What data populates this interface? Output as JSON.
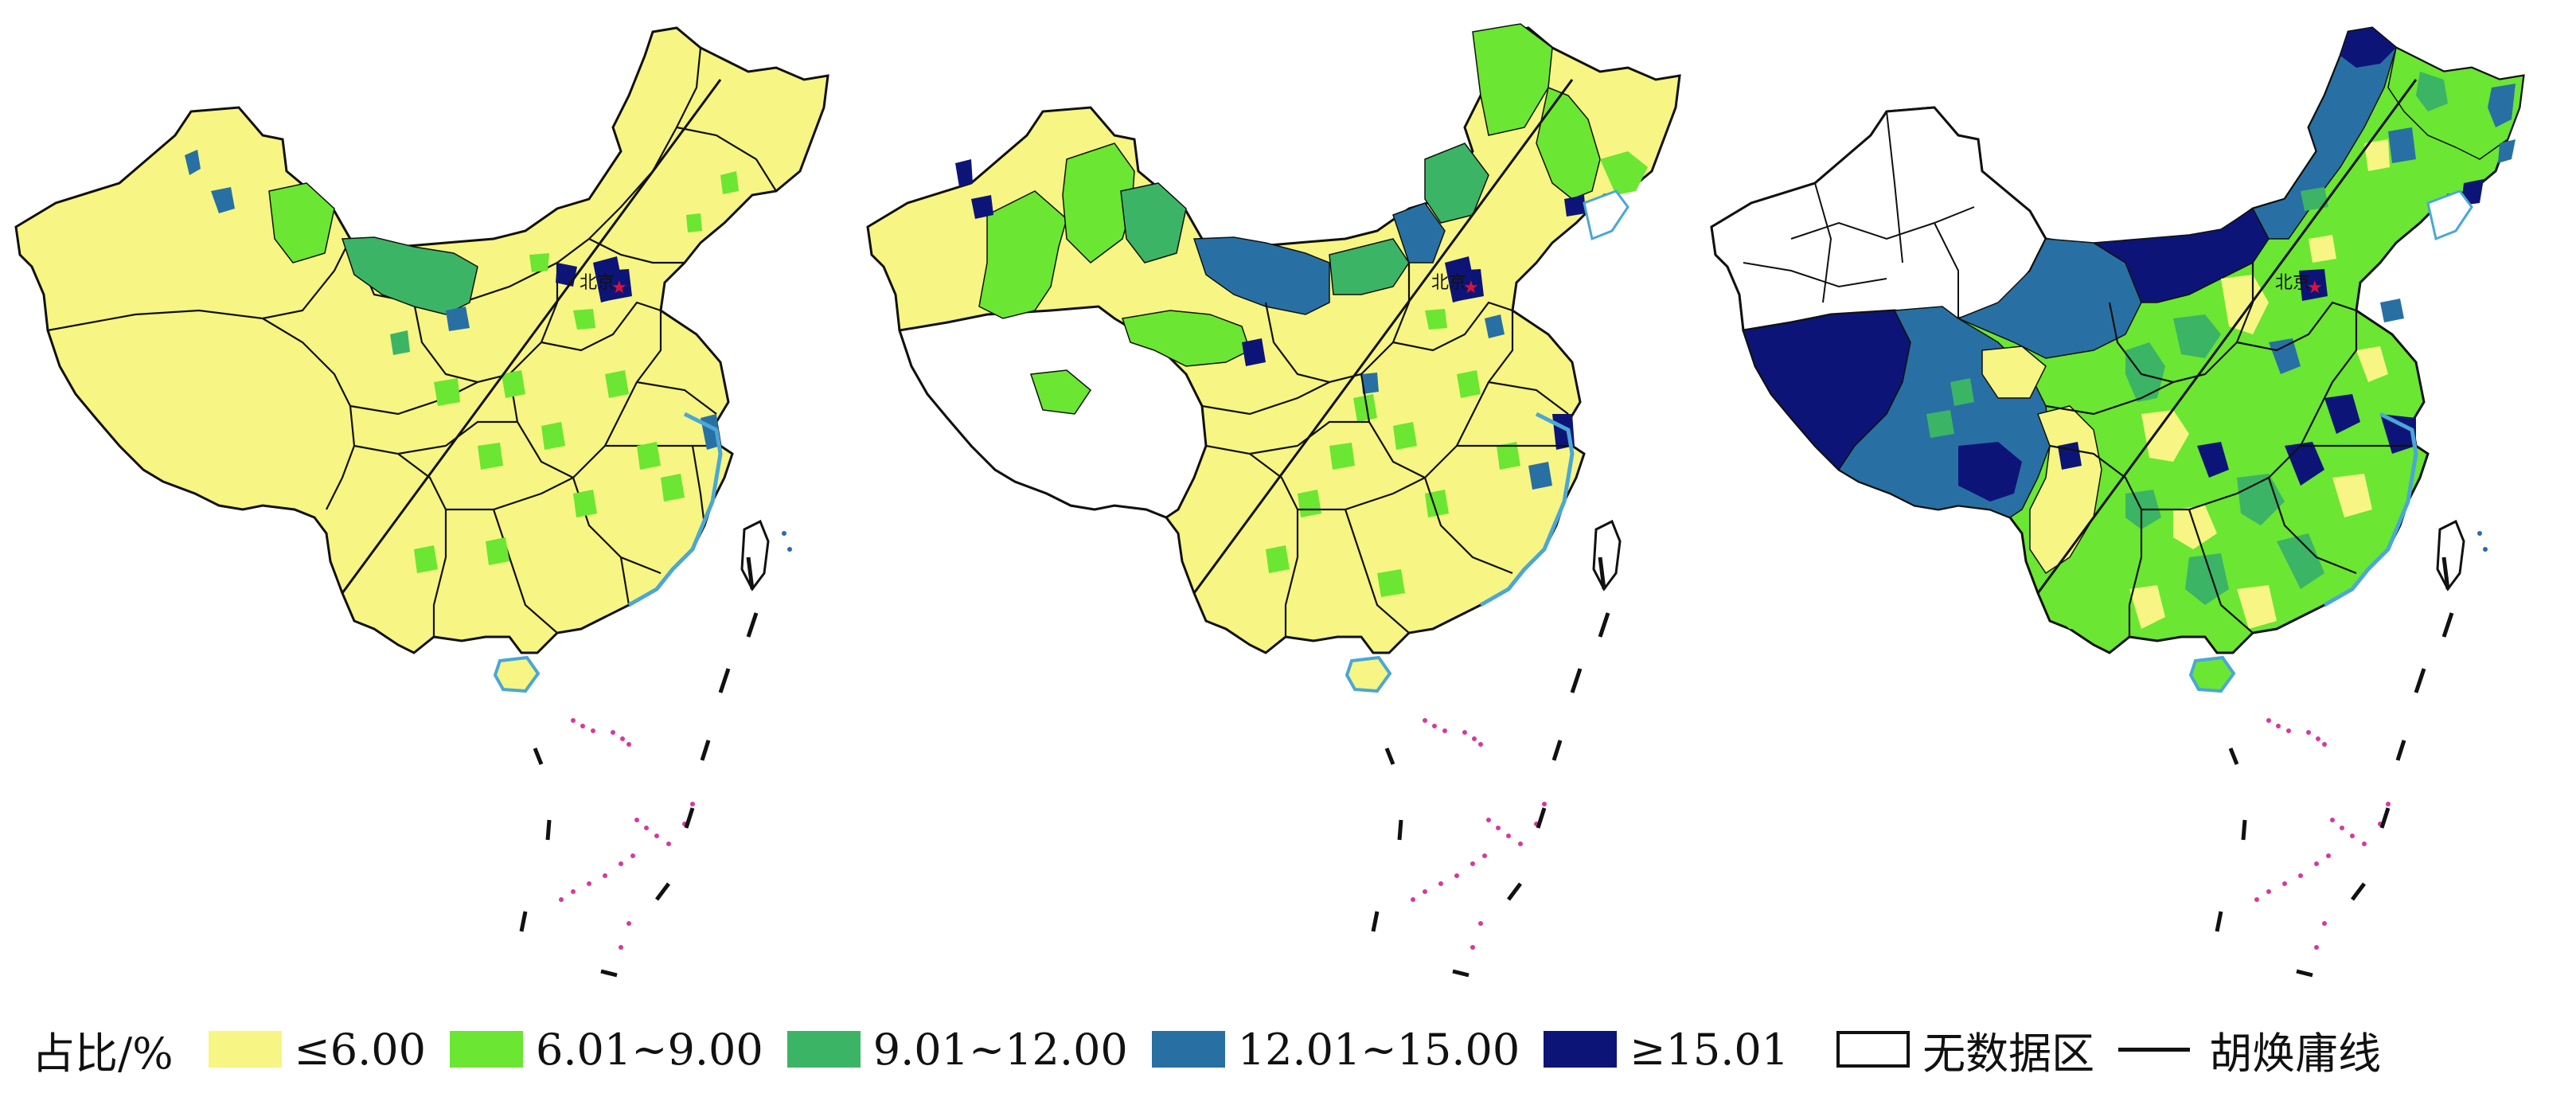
{
  "colors": {
    "c1": "#f7f583",
    "c2": "#6be632",
    "c3": "#3cb466",
    "c4": "#2870a3",
    "c5": "#0d1478",
    "nodata": "#ffffff",
    "coast": "#4aa7d6",
    "border": "#111111",
    "capital_marker": "#e0103a",
    "island_dots": "#d5399e"
  },
  "capital_label": "北京",
  "legend": {
    "title": "占比/%",
    "items": [
      {
        "label": "≤6.00",
        "color_key": "c1"
      },
      {
        "label": "6.01~9.00",
        "color_key": "c2"
      },
      {
        "label": "9.01~12.00",
        "color_key": "c3"
      },
      {
        "label": "12.01~15.00",
        "color_key": "c4"
      },
      {
        "label": "≥15.01",
        "color_key": "c5"
      }
    ],
    "nodata_label": "无数据区",
    "line_label": "胡焕庸线"
  },
  "panels": [
    {
      "id": "panel-1",
      "nodata_regions": [],
      "dominant": "c1"
    },
    {
      "id": "panel-2",
      "nodata_regions": [
        "tibet"
      ],
      "dominant": "c1"
    },
    {
      "id": "panel-3",
      "nodata_regions": [
        "xinjiang"
      ],
      "dominant": "c2"
    }
  ]
}
